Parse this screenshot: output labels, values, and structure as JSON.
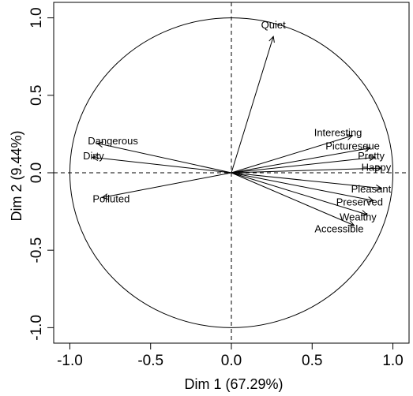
{
  "chart_data": {
    "type": "scatter",
    "subtype": "pca-variable-correlation-circle",
    "title": "",
    "xlabel": "Dim 1 (67.29%)",
    "ylabel": "Dim 2 (9.44%)",
    "xlim": [
      -1.1,
      1.1
    ],
    "ylim": [
      -1.1,
      1.1
    ],
    "xticks": [
      -1.0,
      -0.5,
      0.0,
      0.5,
      1.0
    ],
    "xtick_labels": [
      "-1.0",
      "-0.5",
      "0.0",
      "0.5",
      "1.0"
    ],
    "yticks": [
      -1.0,
      -0.5,
      0.0,
      0.5,
      1.0
    ],
    "ytick_labels": [
      "-1.0",
      "-0.5",
      "0.0",
      "0.5",
      "1.0"
    ],
    "grid": false,
    "reference_lines": "dashed lines at x=0 and y=0",
    "unit_circle": true,
    "variables": [
      {
        "name": "Quiet",
        "x": 0.26,
        "y": 0.88
      },
      {
        "name": "Interesting",
        "x": 0.75,
        "y": 0.24
      },
      {
        "name": "Picturesque",
        "x": 0.86,
        "y": 0.16
      },
      {
        "name": "Pretty",
        "x": 0.89,
        "y": 0.1
      },
      {
        "name": "Happy",
        "x": 0.93,
        "y": 0.03
      },
      {
        "name": "Pleasant",
        "x": 0.93,
        "y": -0.1
      },
      {
        "name": "Preserved",
        "x": 0.88,
        "y": -0.18
      },
      {
        "name": "Wealthy",
        "x": 0.84,
        "y": -0.27
      },
      {
        "name": "Accessible",
        "x": 0.76,
        "y": -0.34
      },
      {
        "name": "Dangerous",
        "x": -0.83,
        "y": 0.19
      },
      {
        "name": "Dirty",
        "x": -0.86,
        "y": 0.1
      },
      {
        "name": "Polluted",
        "x": -0.8,
        "y": -0.16
      }
    ]
  }
}
